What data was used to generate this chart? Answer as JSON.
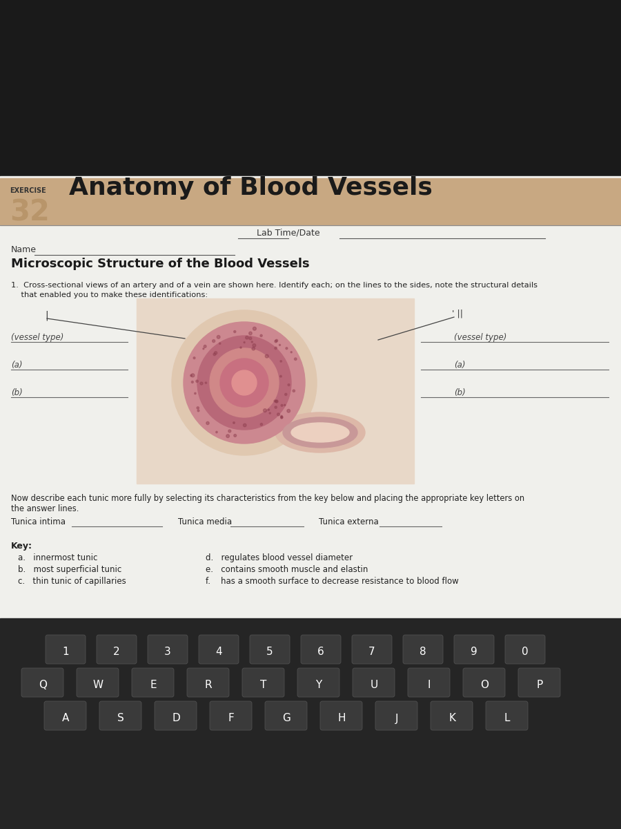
{
  "bg_top": "#1a1a1a",
  "bg_paper": "#f0f0ec",
  "bg_header": "#c8a882",
  "exercise_label": "EXERCISE",
  "exercise_number": "32",
  "title": "Anatomy of Blood Vessels",
  "lab_time_label": "Lab Time/Date",
  "name_label": "Name",
  "section_title": "Microscopic Structure of the Blood Vessels",
  "question1_line1": "1.  Cross-sectional views of an artery and of a vein are shown here. Identify each; on the lines to the sides, note the structural details",
  "question1_line2": "    that enabled you to make these identifications:",
  "left_vessel_label": "(vessel type)",
  "left_a_label": "(a)",
  "left_b_label": "(b)",
  "right_vessel_label": "(vessel type)",
  "right_a_label": "(a)",
  "right_b_label": "(b)",
  "now_describe_line1": "Now describe each tunic more fully by selecting its characteristics from the key below and placing the appropriate key letters on",
  "now_describe_line2": "the answer lines.",
  "tunica_intima_label": "Tunica intima",
  "tunica_media_label": "Tunica media",
  "tunica_externa_label": "Tunica externa",
  "key_label": "Key:",
  "key_items_left": [
    "a.   innermost tunic",
    "b.   most superficial tunic",
    "c.   thin tunic of capillaries"
  ],
  "key_items_right": [
    "d.   regulates blood vessel diameter",
    "e.   contains smooth muscle and elastin",
    "f.    has a smooth surface to decrease resistance to blood flow"
  ],
  "keyboard_row1": [
    "1",
    "2",
    "3",
    "4",
    "5",
    "6",
    "7",
    "8",
    "9",
    "0"
  ],
  "keyboard_row2": [
    "Q",
    "W",
    "E",
    "R",
    "T",
    "Y",
    "U",
    "I",
    "O",
    "P"
  ],
  "keyboard_row3": [
    "A",
    "S",
    "D",
    "F",
    "G",
    "H",
    "J",
    "K",
    "L"
  ]
}
